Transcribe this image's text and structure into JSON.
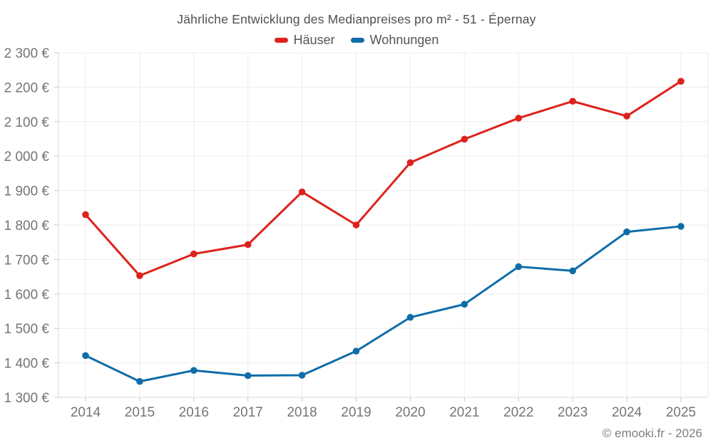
{
  "title": "Jährliche Entwicklung des Medianpreises pro m² - 51 - Épernay",
  "legend": [
    {
      "id": "haeuser",
      "label": "Häuser",
      "color": "#dd221c"
    },
    {
      "id": "wohnungen",
      "label": "Wohnungen",
      "color": "#0e6da8"
    }
  ],
  "footer": "© emooki.fr - 2026",
  "colors": {
    "background": "#ffffff",
    "grid": "#ededed",
    "axis": "#d9d9d9",
    "tick": "#c9c9c9",
    "tick_label": "#757575",
    "title": "#4f4f4f",
    "footer_text": "#7d7d7d",
    "haeuser": "#dd221c",
    "wohnungen": "#0e6da8"
  },
  "chart_data": {
    "type": "line",
    "title": "Jährliche Entwicklung des Medianpreises pro m² - 51 - Épernay",
    "xlabel": "",
    "ylabel": "",
    "categories": [
      "2014",
      "2015",
      "2016",
      "2017",
      "2018",
      "2019",
      "2020",
      "2021",
      "2022",
      "2023",
      "2024",
      "2025"
    ],
    "series": [
      {
        "id": "haeuser",
        "name": "Häuser",
        "color": "#dd221c",
        "values": [
          1830,
          1653,
          1716,
          1743,
          1896,
          1800,
          1981,
          2049,
          2110,
          2159,
          2116,
          2217
        ]
      },
      {
        "id": "wohnungen",
        "name": "Wohnungen",
        "color": "#0e6da8",
        "values": [
          1421,
          1346,
          1378,
          1363,
          1364,
          1434,
          1532,
          1570,
          1679,
          1667,
          1780,
          1796
        ]
      }
    ],
    "ylim": [
      1300,
      2300
    ],
    "y_ticks": [
      1300,
      1400,
      1500,
      1600,
      1700,
      1800,
      1900,
      2000,
      2100,
      2200,
      2300
    ],
    "y_tick_labels": [
      "1 300 €",
      "1 400 €",
      "1 500 €",
      "1 600 €",
      "1 700 €",
      "1 800 €",
      "1 900 €",
      "2 000 €",
      "2 100 €",
      "2 200 €",
      "2 300 €"
    ],
    "grid": true,
    "legend_position": "top"
  }
}
